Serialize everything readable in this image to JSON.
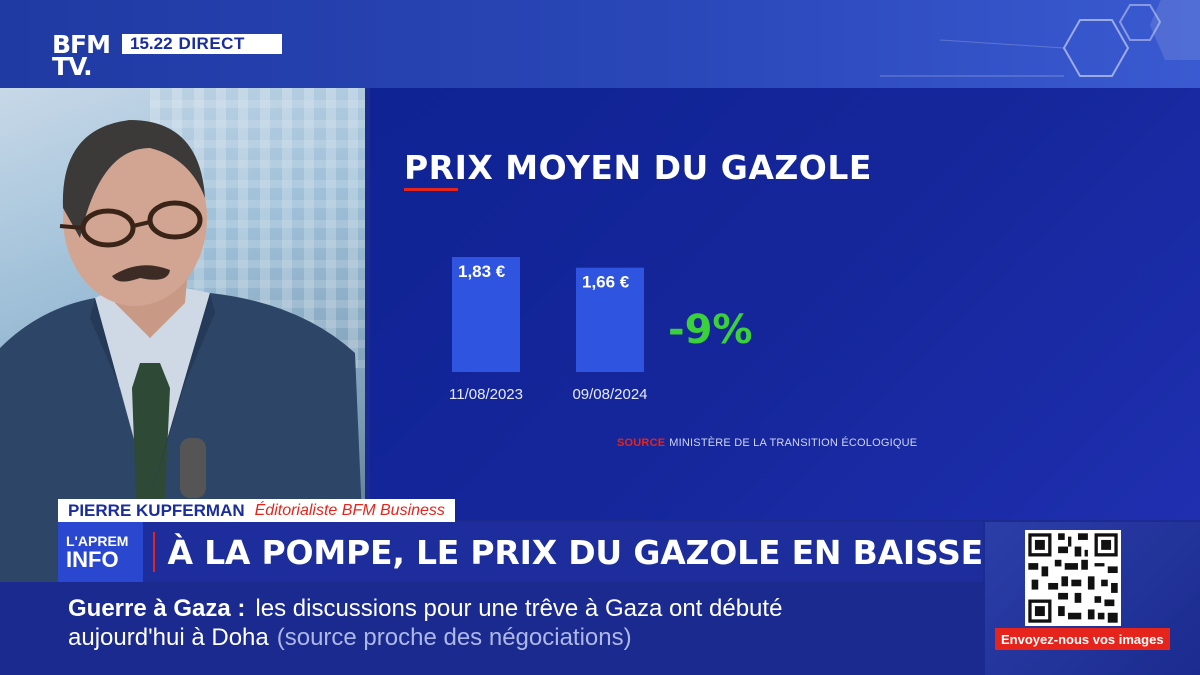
{
  "channel": {
    "logo_line1": "BFM",
    "logo_line2": "TV.",
    "time": "15.22",
    "live_label": "DIRECT"
  },
  "panel": {
    "title": "PRIX MOYEN DU GAZOLE",
    "change_label": "-9%",
    "source_label": "SOURCE",
    "source_text": "MINISTÈRE DE LA TRANSITION ÉCOLOGIQUE",
    "accent_color": "#e5241c",
    "bar_color": "#2f55e0",
    "change_color": "#3ad13a"
  },
  "chart_data": {
    "type": "bar",
    "categories": [
      "11/08/2023",
      "09/08/2024"
    ],
    "values": [
      1.83,
      1.66
    ],
    "value_labels": [
      "1,83 €",
      "1,66 €"
    ],
    "title": "PRIX MOYEN DU GAZOLE",
    "xlabel": "",
    "ylabel": ""
  },
  "guest": {
    "name": "PIERRE KUPFERMAN",
    "role": "Éditorialiste BFM Business"
  },
  "show": {
    "line1": "L'APREM",
    "line2": "INFO"
  },
  "headline": "À LA POMPE, LE PRIX DU GAZOLE EN BAISSE",
  "ticker": {
    "topic": "Guerre à Gaza :",
    "text1": "les discussions pour une trêve à Gaza ont débuté",
    "text2": "aujourd'hui à Doha",
    "source": "(source proche des négociations)"
  },
  "qr": {
    "icon": "qr-code-icon",
    "caption": "Envoyez-nous vos images"
  }
}
